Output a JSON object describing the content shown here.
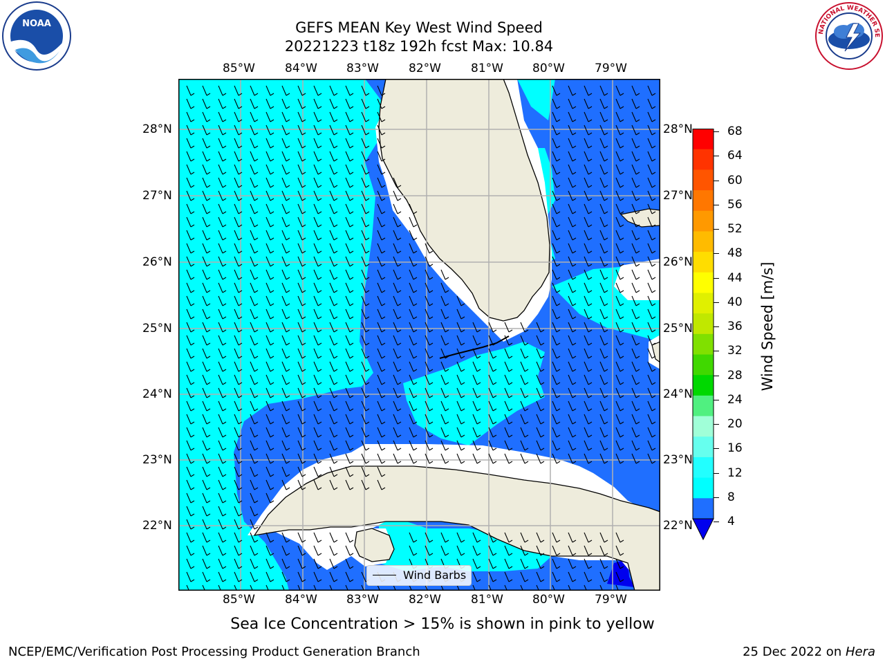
{
  "title": {
    "line1": "GEFS MEAN Key West Wind Speed",
    "line2": "20221223 t18z 192h fcst   Max: 10.84"
  },
  "map": {
    "lon_labels": [
      "85°W",
      "84°W",
      "83°W",
      "82°W",
      "81°W",
      "80°W",
      "79°W"
    ],
    "lat_labels": [
      "28°N",
      "27°N",
      "26°N",
      "25°N",
      "24°N",
      "23°N",
      "22°N"
    ],
    "legend_label": "Wind Barbs",
    "colors": {
      "land": "#eeecdc",
      "ocean_low": "#1f6fff",
      "ocean_high": "#00ffff",
      "ocean_min": "#0000ee",
      "grid": "#b0b0b0"
    }
  },
  "colorbar": {
    "label": "Wind Speed [m/s]",
    "ticks": [
      "68",
      "64",
      "60",
      "56",
      "52",
      "48",
      "44",
      "40",
      "36",
      "32",
      "28",
      "24",
      "20",
      "16",
      "12",
      "8",
      "4"
    ],
    "colors": [
      "#ff0000",
      "#ff3300",
      "#ff5500",
      "#ff7700",
      "#ff9900",
      "#ffbb00",
      "#ffdd00",
      "#ffff00",
      "#e0f000",
      "#c0e800",
      "#80e000",
      "#40d800",
      "#00d800",
      "#50f080",
      "#a0ffd8",
      "#66ffee",
      "#22ffff",
      "#00ffff",
      "#1f6fff",
      "#0000ee"
    ]
  },
  "caption": "Sea Ice Concentration > 15% is shown in pink to yellow",
  "footer": {
    "left": "NCEP/EMC/Verification Post Processing Product Generation Branch",
    "date": "25 Dec 2022 on ",
    "host": "Hera"
  },
  "logos": {
    "noaa": "NOAA",
    "nws": "NATIONAL WEATHER SERVICE"
  }
}
